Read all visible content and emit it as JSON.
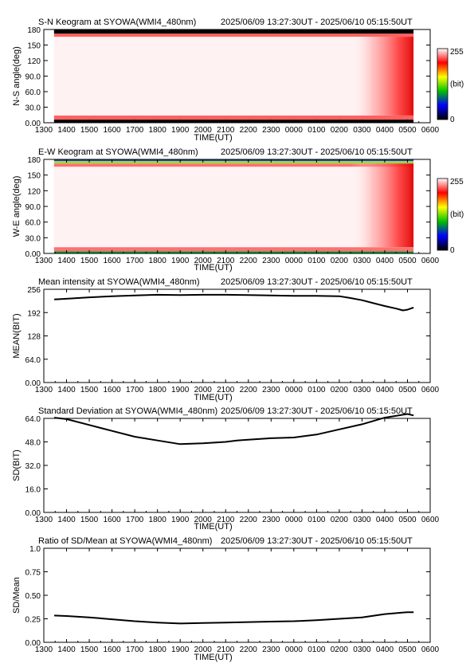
{
  "chart_data": [
    {
      "type": "heatmap",
      "title": "S-N Keogram at SYOWA(WMI4_480nm)",
      "time_range": "2025/06/09 13:27:30UT  - 2025/06/10 05:15:50UT",
      "xlabel": "TIME(UT)",
      "ylabel": "N-S angle(deg)",
      "x_ticks": [
        "1300",
        "1400",
        "1500",
        "1600",
        "1700",
        "1800",
        "1900",
        "2000",
        "2100",
        "2200",
        "2300",
        "0000",
        "0100",
        "0200",
        "0300",
        "0400",
        "0500",
        "0600"
      ],
      "y_ticks": [
        "0.00",
        "30.0",
        "60.0",
        "90.0",
        "120",
        "150",
        "180"
      ],
      "ylim": [
        0,
        180
      ],
      "colorbar": {
        "min": "0",
        "max": "255",
        "unit": "(bit)",
        "colors": [
          "#000000",
          "#0000ff",
          "#00c000",
          "#ffff00",
          "#ff0000",
          "#ffffff"
        ]
      },
      "bands": [
        {
          "from_deg": 0,
          "to_deg": 6,
          "color": "#000000",
          "description": "dark band"
        },
        {
          "from_deg": 6,
          "to_deg": 14,
          "color": "#ff6060"
        },
        {
          "from_deg": 14,
          "to_deg": 166,
          "color": "#fff2f2"
        },
        {
          "from_deg": 166,
          "to_deg": 172,
          "color": "#ff6060"
        },
        {
          "from_deg": 172,
          "to_deg": 180,
          "color": "#000000"
        }
      ],
      "bright_region_start": "0230",
      "data_start": "1327",
      "data_end": "0516"
    },
    {
      "type": "heatmap",
      "title": "E-W Keogram at SYOWA(WMI4_480nm)",
      "time_range": "2025/06/09 13:27:30UT  - 2025/06/10 05:15:50UT",
      "xlabel": "TIME(UT)",
      "ylabel": "W-E angle(deg)",
      "x_ticks": [
        "1300",
        "1400",
        "1500",
        "1600",
        "1700",
        "1800",
        "1900",
        "2000",
        "2100",
        "2200",
        "2300",
        "0000",
        "0100",
        "0200",
        "0300",
        "0400",
        "0500",
        "0600"
      ],
      "y_ticks": [
        "0.00",
        "30.0",
        "60.0",
        "90.0",
        "120",
        "150",
        "180"
      ],
      "ylim": [
        0,
        180
      ],
      "colorbar": {
        "min": "0",
        "max": "255",
        "unit": "(bit)",
        "colors": [
          "#000000",
          "#0000ff",
          "#00c000",
          "#ffff00",
          "#ff0000",
          "#ffffff"
        ]
      },
      "bands": [
        {
          "from_deg": 0,
          "to_deg": 4,
          "color": "#0a9a3a"
        },
        {
          "from_deg": 4,
          "to_deg": 12,
          "color": "#ff7070"
        },
        {
          "from_deg": 12,
          "to_deg": 166,
          "color": "#fff2f2"
        },
        {
          "from_deg": 166,
          "to_deg": 172,
          "color": "#ff7070"
        },
        {
          "from_deg": 172,
          "to_deg": 177,
          "color": "#9fd640"
        },
        {
          "from_deg": 177,
          "to_deg": 180,
          "color": "#1a40c0"
        }
      ],
      "bright_region_start": "0230",
      "data_start": "1327",
      "data_end": "0516"
    },
    {
      "type": "line",
      "title": "Mean intensity at SYOWA(WMI4_480nm)",
      "time_range": "2025/06/09 13:27:30UT  - 2025/06/10 05:15:50UT",
      "xlabel": "TIME(UT)",
      "ylabel": "MEAN(BIT)",
      "x_ticks": [
        "1300",
        "1400",
        "1500",
        "1600",
        "1700",
        "1800",
        "1900",
        "2000",
        "2100",
        "2200",
        "2300",
        "0000",
        "0100",
        "0200",
        "0300",
        "0400",
        "0500",
        "0600"
      ],
      "y_ticks": [
        "0.00",
        "64.0",
        "128",
        "192",
        "256"
      ],
      "ylim": [
        0,
        256
      ],
      "series": [
        {
          "x_hours_after_1300": [
            0.46,
            1,
            2,
            3,
            4,
            5,
            6,
            7,
            8,
            9,
            10,
            11,
            12,
            13,
            13.5,
            14,
            14.5,
            15,
            15.5,
            15.8,
            16,
            16.27
          ],
          "values": [
            228,
            230,
            234,
            237,
            239,
            241,
            240,
            241,
            241,
            240,
            239,
            238,
            238,
            237,
            232,
            226,
            218,
            210,
            203,
            198,
            200,
            206
          ]
        }
      ]
    },
    {
      "type": "line",
      "title": "Standard Deviation at SYOWA(WMI4_480nm)",
      "time_range": "2025/06/09 13:27:30UT  - 2025/06/10 05:15:50UT",
      "xlabel": "TIME(UT)",
      "ylabel": "SD(BIT)",
      "x_ticks": [
        "1300",
        "1400",
        "1500",
        "1600",
        "1700",
        "1800",
        "1900",
        "2000",
        "2100",
        "2200",
        "2300",
        "0000",
        "0100",
        "0200",
        "0300",
        "0400",
        "0500",
        "0600"
      ],
      "y_ticks": [
        "0.00",
        "16.0",
        "32.0",
        "48.0",
        "64.0"
      ],
      "ylim": [
        0,
        64
      ],
      "series": [
        {
          "x_hours_after_1300": [
            0.46,
            1,
            2,
            3,
            4,
            5,
            6,
            7,
            8,
            8.5,
            9,
            10,
            11,
            12,
            13,
            14,
            15,
            16,
            16.27
          ],
          "values": [
            64.5,
            63.5,
            59.5,
            55.5,
            51.5,
            49,
            46.5,
            47,
            48,
            49,
            49.5,
            50.5,
            51,
            53,
            56.5,
            60,
            64.5,
            67,
            66
          ]
        }
      ]
    },
    {
      "type": "line",
      "title": "Ratio of SD/Mean at SYOWA(WMI4_480nm)",
      "time_range": "2025/06/09 13:27:30UT  - 2025/06/10 05:15:50UT",
      "xlabel": "TIME(UT)",
      "ylabel": "SD/Mean",
      "x_ticks": [
        "1300",
        "1400",
        "1500",
        "1600",
        "1700",
        "1800",
        "1900",
        "2000",
        "2100",
        "2200",
        "2300",
        "0000",
        "0100",
        "0200",
        "0300",
        "0400",
        "0500",
        "0600"
      ],
      "y_ticks": [
        "0.00",
        "0.25",
        "0.50",
        "0.75",
        "1.0"
      ],
      "ylim": [
        0,
        1.0
      ],
      "series": [
        {
          "x_hours_after_1300": [
            0.46,
            1,
            2,
            3,
            4,
            5,
            6,
            7,
            8,
            9,
            10,
            11,
            12,
            13,
            14,
            15,
            16,
            16.27
          ],
          "values": [
            0.285,
            0.28,
            0.265,
            0.245,
            0.225,
            0.21,
            0.2,
            0.205,
            0.21,
            0.215,
            0.22,
            0.225,
            0.235,
            0.25,
            0.265,
            0.3,
            0.32,
            0.32
          ]
        }
      ]
    }
  ]
}
